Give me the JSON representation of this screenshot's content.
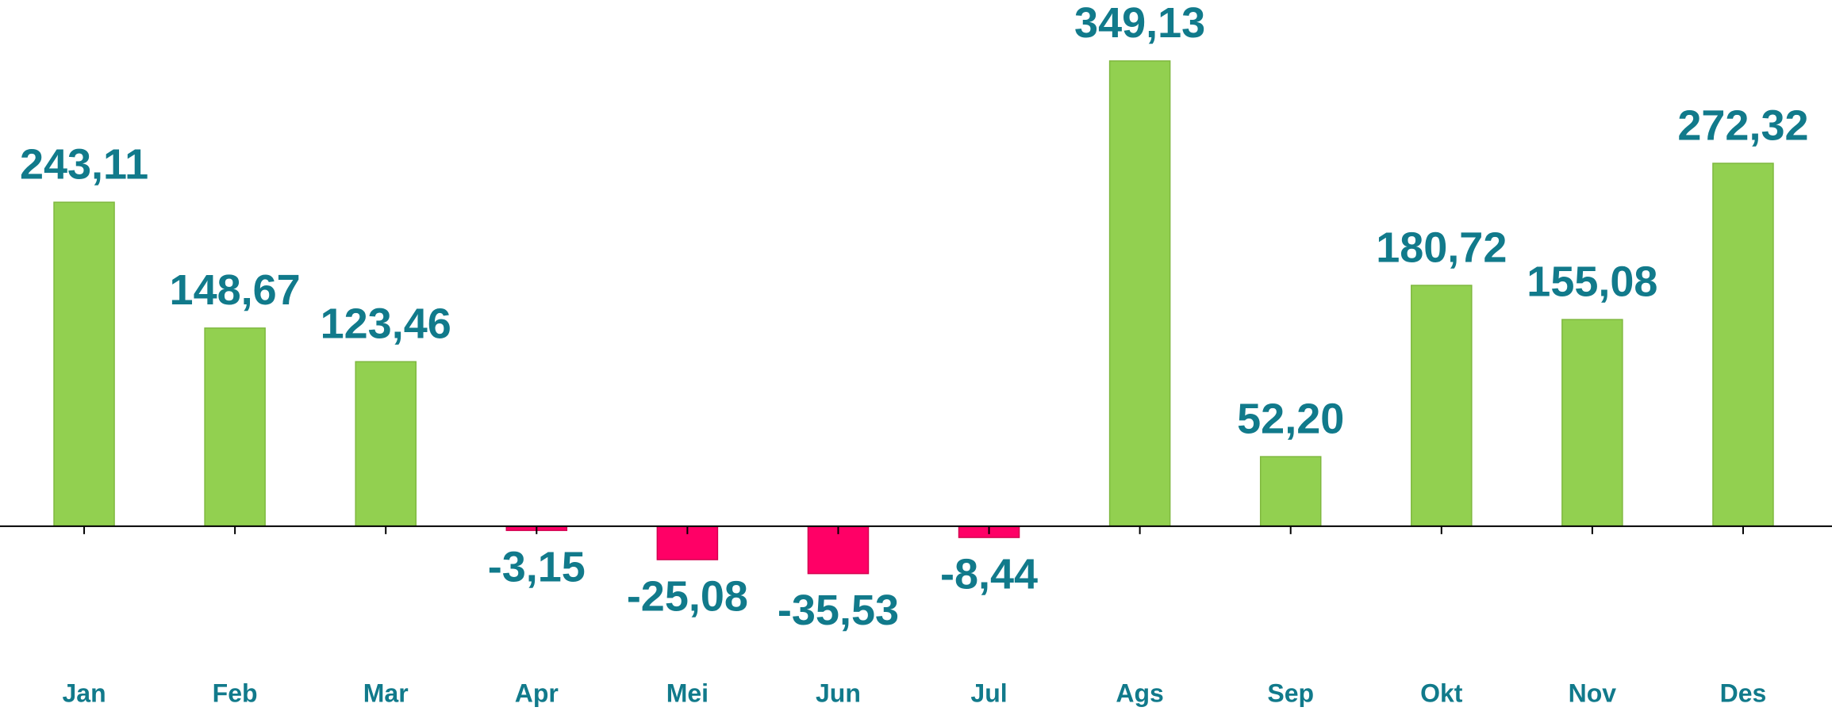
{
  "chart_data": {
    "type": "bar",
    "categories": [
      "Jan",
      "Feb",
      "Mar",
      "Apr",
      "Mei",
      "Jun",
      "Jul",
      "Ags",
      "Sep",
      "Okt",
      "Nov",
      "Des"
    ],
    "values": [
      243.11,
      148.67,
      123.46,
      -3.15,
      -25.08,
      -35.53,
      -8.44,
      349.13,
      52.2,
      180.72,
      155.08,
      272.32
    ],
    "value_labels": [
      "243,11",
      "148,67",
      "123,46",
      "-3,15",
      "-25,08",
      "-35,53",
      "-8,44",
      "349,13",
      "52,20",
      "180,72",
      "155,08",
      "272,32"
    ],
    "positive_color": "#92d050",
    "negative_color": "#ff0066",
    "ylim": [
      -100,
      380
    ]
  }
}
